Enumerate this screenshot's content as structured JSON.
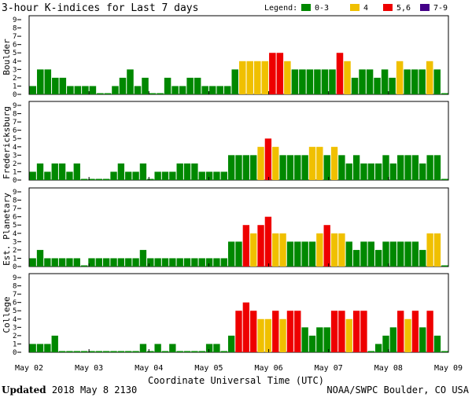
{
  "title": "3-hour K-indices for Last 7 days",
  "legend": {
    "label": "Legend:",
    "items": [
      {
        "label": "0-3",
        "color": "#008800"
      },
      {
        "label": "4",
        "color": "#f0c000"
      },
      {
        "label": "5,6",
        "color": "#ee0000"
      },
      {
        "label": "7-9",
        "color": "#440088"
      }
    ]
  },
  "footer": {
    "updated_label": "Updated",
    "updated_value": "2018 May  8 2130",
    "source": "NOAA/SWPC Boulder, CO USA"
  },
  "chart_data": [
    {
      "type": "bar",
      "title": "Boulder",
      "ylabel": "Boulder",
      "ylim": [
        0,
        9
      ],
      "yticks": [
        0,
        1,
        2,
        3,
        4,
        5,
        6,
        7,
        8,
        9
      ],
      "xlabel": "Coordinate Universal Time (UTC)",
      "x_ticks": [
        "May 02",
        "May 03",
        "May 04",
        "May 05",
        "May 06",
        "May 07",
        "May 08",
        "May 09"
      ],
      "values": [
        1,
        3,
        3,
        2,
        2,
        1,
        1,
        1,
        1,
        0,
        0,
        1,
        2,
        3,
        1,
        2,
        0,
        0,
        2,
        1,
        1,
        2,
        2,
        1,
        1,
        1,
        1,
        3,
        4,
        4,
        4,
        4,
        5,
        5,
        4,
        3,
        3,
        3,
        3,
        3,
        3,
        5,
        4,
        2,
        3,
        3,
        2,
        3,
        2,
        4,
        3,
        3,
        3,
        4,
        3,
        0
      ]
    },
    {
      "type": "bar",
      "title": "Fredericksburg",
      "ylabel": "Fredericksburg",
      "ylim": [
        0,
        9
      ],
      "yticks": [
        0,
        1,
        2,
        3,
        4,
        5,
        6,
        7,
        8,
        9
      ],
      "xlabel": "Coordinate Universal Time (UTC)",
      "x_ticks": [
        "May 02",
        "May 03",
        "May 04",
        "May 05",
        "May 06",
        "May 07",
        "May 08",
        "May 09"
      ],
      "values": [
        1,
        2,
        1,
        2,
        2,
        1,
        2,
        0,
        0,
        0,
        0,
        1,
        2,
        1,
        1,
        2,
        0,
        1,
        1,
        1,
        2,
        2,
        2,
        1,
        1,
        1,
        1,
        3,
        3,
        3,
        3,
        4,
        5,
        4,
        3,
        3,
        3,
        3,
        4,
        4,
        3,
        4,
        3,
        2,
        3,
        2,
        2,
        2,
        3,
        2,
        3,
        3,
        3,
        2,
        3,
        3,
        0
      ]
    },
    {
      "type": "bar",
      "title": "Est. Planetary",
      "ylabel": "Est. Planetary",
      "ylim": [
        0,
        9
      ],
      "yticks": [
        0,
        1,
        2,
        3,
        4,
        5,
        6,
        7,
        8,
        9
      ],
      "xlabel": "Coordinate Universal Time (UTC)",
      "x_ticks": [
        "May 02",
        "May 03",
        "May 04",
        "May 05",
        "May 06",
        "May 07",
        "May 08",
        "May 09"
      ],
      "values": [
        1,
        2,
        1,
        1,
        1,
        1,
        1,
        0,
        1,
        1,
        1,
        1,
        1,
        1,
        1,
        2,
        1,
        1,
        1,
        1,
        1,
        1,
        1,
        1,
        1,
        1,
        1,
        3,
        3,
        5,
        4,
        5,
        6,
        4,
        4,
        3,
        3,
        3,
        3,
        4,
        5,
        4,
        4,
        3,
        2,
        3,
        3,
        2,
        3,
        3,
        3,
        3,
        3,
        2,
        4,
        4,
        0
      ]
    },
    {
      "type": "bar",
      "title": "College",
      "ylabel": "College",
      "ylim": [
        0,
        9
      ],
      "yticks": [
        0,
        1,
        2,
        3,
        4,
        5,
        6,
        7,
        8,
        9
      ],
      "xlabel": "Coordinate Universal Time (UTC)",
      "x_ticks": [
        "May 02",
        "May 03",
        "May 04",
        "May 05",
        "May 06",
        "May 07",
        "May 08",
        "May 09"
      ],
      "values": [
        1,
        1,
        1,
        2,
        0,
        0,
        0,
        0,
        0,
        0,
        0,
        0,
        0,
        0,
        0,
        1,
        0,
        1,
        0,
        1,
        0,
        0,
        0,
        0,
        1,
        1,
        0,
        2,
        5,
        6,
        5,
        4,
        4,
        5,
        4,
        5,
        5,
        3,
        2,
        3,
        3,
        5,
        5,
        4,
        5,
        5,
        0,
        1,
        2,
        3,
        5,
        4,
        5,
        3,
        5,
        2,
        0
      ]
    }
  ]
}
